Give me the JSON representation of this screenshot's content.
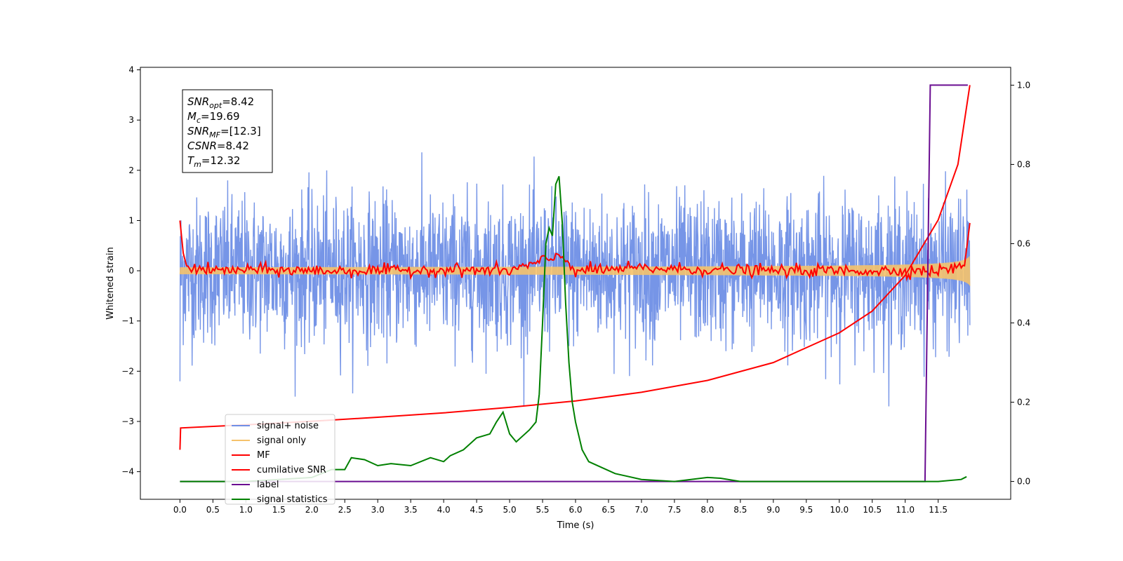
{
  "chart_data": {
    "type": "line",
    "xlabel": "Time (s)",
    "ylabel_left": "Whitened strain",
    "xlim": [
      -0.6,
      12.6
    ],
    "ylim_left": [
      -4.55,
      4.05
    ],
    "ylim_right": [
      -0.045,
      1.045
    ],
    "x_ticks": [
      "0.0",
      "0.5",
      "1.0",
      "1.5",
      "2.0",
      "2.5",
      "3.0",
      "3.5",
      "4.0",
      "4.5",
      "5.0",
      "5.5",
      "6.0",
      "6.5",
      "7.0",
      "7.5",
      "8.0",
      "8.5",
      "9.0",
      "9.5",
      "10.0",
      "10.5",
      "11.0",
      "11.5"
    ],
    "y_ticks_left": [
      "4",
      "3",
      "2",
      "1",
      "0",
      "−1",
      "−2",
      "−3",
      "−4"
    ],
    "y_ticks_right": [
      "1.0",
      "0.8",
      "0.6",
      "0.4",
      "0.2",
      "0.0"
    ],
    "grid": false,
    "legend_placement": "lower-left",
    "annotation": {
      "lines": [
        {
          "name": "SNR",
          "sub": "opt",
          "value": "=8.42"
        },
        {
          "name": "M",
          "sub": "c",
          "value": "=19.69"
        },
        {
          "name": "SNR",
          "sub": "MF",
          "value": "=[12.3]"
        },
        {
          "name": "CSNR",
          "sub": "",
          "value": "=8.42"
        },
        {
          "name": "T",
          "sub": "m",
          "value": "=12.32"
        }
      ]
    },
    "series": [
      {
        "name": "signal+ noise",
        "color": "#6f8fe6",
        "axis": "left",
        "kind": "noise",
        "x_range": [
          0.0,
          11.98
        ],
        "amplitude_range": [
          -2.7,
          2.7
        ]
      },
      {
        "name": "signal only",
        "color": "#f5c26b",
        "axis": "left",
        "kind": "chirp",
        "x_range": [
          0.0,
          11.98
        ],
        "amplitude_end": 0.45
      },
      {
        "name": "MF",
        "color": "#ff0000",
        "axis": "left",
        "points": [
          [
            0.0,
            1.0
          ],
          [
            0.05,
            0.35
          ],
          [
            0.1,
            0.1
          ],
          [
            0.2,
            0.05
          ],
          [
            0.5,
            0.0
          ],
          [
            1.0,
            0.02
          ],
          [
            2.0,
            0.0
          ],
          [
            3.0,
            0.0
          ],
          [
            4.0,
            0.02
          ],
          [
            5.0,
            0.0
          ],
          [
            5.8,
            0.3
          ],
          [
            6.0,
            0.0
          ],
          [
            7.0,
            0.05
          ],
          [
            8.0,
            0.02
          ],
          [
            9.0,
            0.0
          ],
          [
            10.0,
            0.0
          ],
          [
            11.0,
            0.0
          ],
          [
            11.5,
            0.0
          ],
          [
            11.9,
            0.1
          ],
          [
            11.98,
            0.95
          ]
        ]
      },
      {
        "name": "cumilative SNR",
        "color": "#ff0000",
        "axis": "right",
        "points": [
          [
            0.0,
            0.08
          ],
          [
            0.01,
            0.135
          ],
          [
            1.0,
            0.143
          ],
          [
            2.0,
            0.152
          ],
          [
            3.0,
            0.162
          ],
          [
            4.0,
            0.173
          ],
          [
            5.0,
            0.187
          ],
          [
            6.0,
            0.203
          ],
          [
            7.0,
            0.225
          ],
          [
            8.0,
            0.255
          ],
          [
            9.0,
            0.3
          ],
          [
            10.0,
            0.375
          ],
          [
            10.5,
            0.43
          ],
          [
            11.0,
            0.52
          ],
          [
            11.5,
            0.66
          ],
          [
            11.8,
            0.8
          ],
          [
            11.98,
            1.0
          ]
        ]
      },
      {
        "name": "label",
        "color": "#6a0d91",
        "axis": "right",
        "points": [
          [
            0.0,
            0.0
          ],
          [
            11.3,
            0.0
          ],
          [
            11.38,
            1.0
          ],
          [
            11.95,
            1.0
          ]
        ]
      },
      {
        "name": "signal statistics",
        "color": "#008000",
        "axis": "right",
        "points": [
          [
            0.0,
            0.0
          ],
          [
            0.5,
            0.0
          ],
          [
            1.0,
            0.0
          ],
          [
            1.5,
            0.005
          ],
          [
            2.0,
            0.01
          ],
          [
            2.3,
            0.03
          ],
          [
            2.5,
            0.03
          ],
          [
            2.6,
            0.06
          ],
          [
            2.8,
            0.055
          ],
          [
            3.0,
            0.04
          ],
          [
            3.2,
            0.045
          ],
          [
            3.5,
            0.04
          ],
          [
            3.8,
            0.06
          ],
          [
            4.0,
            0.05
          ],
          [
            4.1,
            0.065
          ],
          [
            4.3,
            0.08
          ],
          [
            4.5,
            0.11
          ],
          [
            4.7,
            0.12
          ],
          [
            4.8,
            0.15
          ],
          [
            4.9,
            0.175
          ],
          [
            5.0,
            0.12
          ],
          [
            5.1,
            0.1
          ],
          [
            5.3,
            0.13
          ],
          [
            5.4,
            0.15
          ],
          [
            5.45,
            0.22
          ],
          [
            5.5,
            0.4
          ],
          [
            5.55,
            0.6
          ],
          [
            5.6,
            0.64
          ],
          [
            5.65,
            0.62
          ],
          [
            5.7,
            0.75
          ],
          [
            5.75,
            0.77
          ],
          [
            5.8,
            0.65
          ],
          [
            5.85,
            0.45
          ],
          [
            5.9,
            0.3
          ],
          [
            5.95,
            0.2
          ],
          [
            6.0,
            0.15
          ],
          [
            6.1,
            0.08
          ],
          [
            6.2,
            0.05
          ],
          [
            6.4,
            0.035
          ],
          [
            6.6,
            0.02
          ],
          [
            7.0,
            0.005
          ],
          [
            7.5,
            0.0
          ],
          [
            8.0,
            0.01
          ],
          [
            8.2,
            0.008
          ],
          [
            8.5,
            0.0
          ],
          [
            9.0,
            0.0
          ],
          [
            10.0,
            0.0
          ],
          [
            11.0,
            0.0
          ],
          [
            11.5,
            0.0
          ],
          [
            11.85,
            0.005
          ],
          [
            11.93,
            0.012
          ]
        ]
      }
    ]
  }
}
